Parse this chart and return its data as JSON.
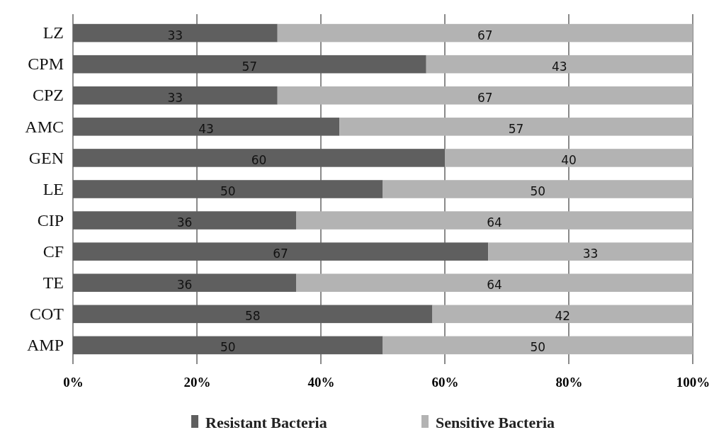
{
  "chart_data": {
    "type": "bar",
    "orientation": "horizontal",
    "stacked": true,
    "categories": [
      "LZ",
      "CPM",
      "CPZ",
      "AMC",
      "GEN",
      "LE",
      "CIP",
      "CF",
      "TE",
      "COT",
      "AMP"
    ],
    "series": [
      {
        "name": "Resistant Bacteria",
        "color": "#5f5f5f",
        "values": [
          33,
          57,
          33,
          43,
          60,
          50,
          36,
          67,
          36,
          58,
          50
        ]
      },
      {
        "name": "Sensitive Bacteria",
        "color": "#b3b3b3",
        "values": [
          67,
          43,
          67,
          57,
          40,
          50,
          64,
          33,
          64,
          42,
          50
        ]
      }
    ],
    "xlim": [
      0,
      100
    ],
    "xticks": [
      {
        "value": 0,
        "label": "0%"
      },
      {
        "value": 20,
        "label": "20%"
      },
      {
        "value": 40,
        "label": "40%"
      },
      {
        "value": 60,
        "label": "60%"
      },
      {
        "value": 80,
        "label": "80%"
      },
      {
        "value": 100,
        "label": "100%"
      }
    ],
    "grid": "x",
    "legend": "bottom",
    "data_labels": true
  }
}
